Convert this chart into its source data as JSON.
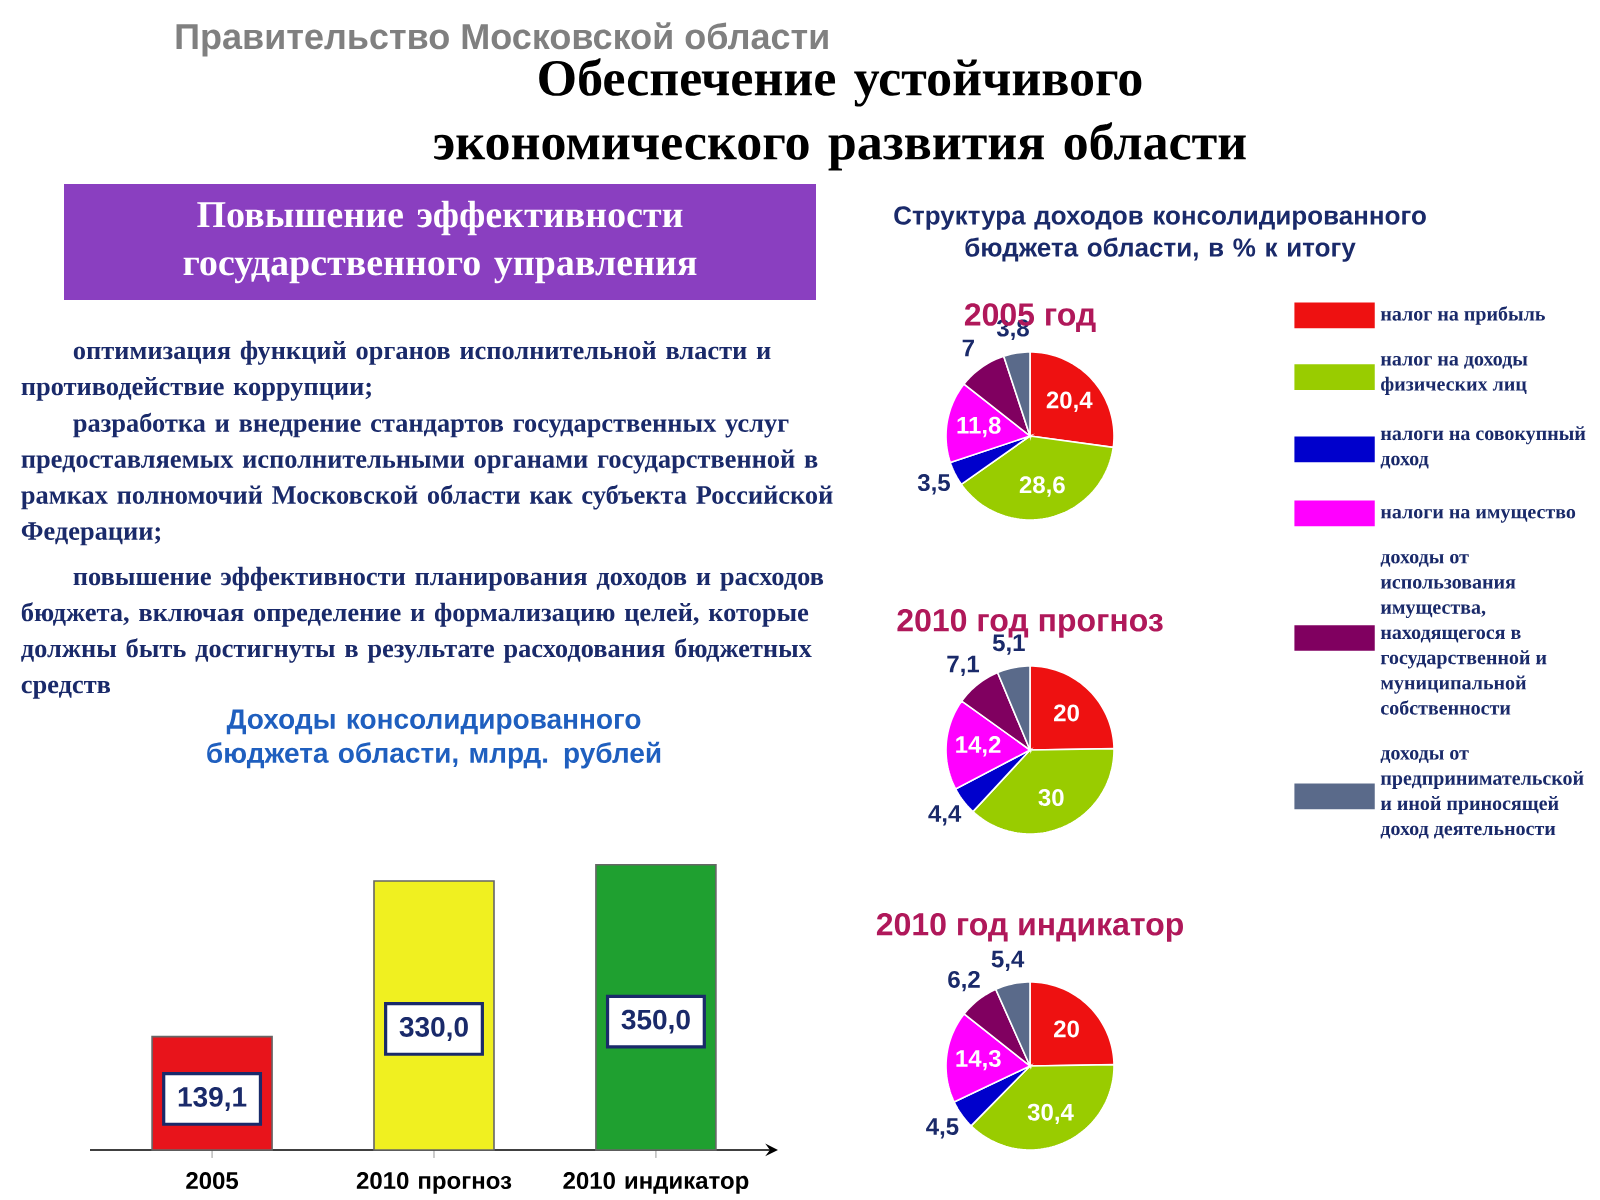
{
  "chart_data": [
    {
      "type": "other",
      "title": "Обеспечение устойчивого экономического развития области",
      "subtitle": "Повышение эффективности государственного управления",
      "annotations": [
        "Правительство Московской области",
        "оптимизация функций органов исполнительной власти и противодействие коррупции;",
        "разработка и внедрение стандартов государственных услуг предоставляемых исполнительными органами государственной в рамках полномочий Московской области как субъекта Российской Федерации;",
        "повышение эффективности планирования доходов и расходов бюджета, включая определение и формализацию целей, которые должны быть достигнуты в результате расходования бюджетных средств"
      ]
    },
    {
      "type": "bar",
      "title": "Доходы консолидированного бюджета области, млрд. рублей",
      "categories": [
        "2005",
        "2010 прогноз",
        "2010 индикатор"
      ],
      "values": [
        139.1,
        330.0,
        350.0
      ],
      "colors": [
        "#e8141b",
        "#f0f020",
        "#1fa030"
      ],
      "value_labels": [
        "139,1",
        "330,0",
        "350,0"
      ]
    },
    {
      "type": "pie",
      "title": "2005 год",
      "subtitle": "Структура доходов консолидированного бюджета области, в % к итогу",
      "legend": "right",
      "categories": [
        "налог на прибыль",
        "налог на доходы физических лиц",
        "налоги на совокупный доход",
        "налоги на имущество",
        "доходы от использования имущества, находящегося в государственной и муниципальной собственности",
        "доходы от предпринимательской и иной приносящей доход деятельности"
      ],
      "values": [
        20.4,
        28.6,
        3.5,
        11.8,
        7,
        3.8
      ],
      "colors": [
        "#ee1111",
        "#99cc00",
        "#0000cc",
        "#ff00ff",
        "#800060",
        "#5a6a8a"
      ],
      "value_labels": [
        "20,4",
        "28,6",
        "3,5",
        "11,8",
        "7",
        "3,8"
      ]
    },
    {
      "type": "pie",
      "title": "2010 год прогноз",
      "categories": [
        null,
        null,
        null,
        null,
        null,
        null
      ],
      "values": [
        20,
        30,
        4.4,
        14.2,
        7.1,
        5.1
      ],
      "colors": [
        "#ee1111",
        "#99cc00",
        "#0000cc",
        "#ff00ff",
        "#800060",
        "#5a6a8a"
      ],
      "value_labels": [
        "20",
        "30",
        "4,4",
        "14,2",
        "7,1",
        "5,1"
      ]
    },
    {
      "type": "pie",
      "title": "2010 год индикатор",
      "categories": [
        null,
        null,
        null,
        null,
        null,
        null
      ],
      "values": [
        20,
        30.4,
        4.5,
        14.3,
        6.2,
        5.4
      ],
      "colors": [
        "#ee1111",
        "#99cc00",
        "#0000cc",
        "#ff00ff",
        "#800060",
        "#5a6a8a"
      ],
      "value_labels": [
        "20",
        "30,4",
        "4,5",
        "14,3",
        "6,2",
        "5,4"
      ]
    }
  ]
}
